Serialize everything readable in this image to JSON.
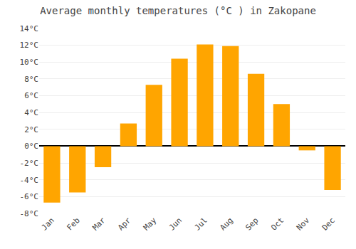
{
  "chart_data": {
    "type": "bar",
    "title": "Average monthly temperatures (°C ) in Zakopane",
    "categories": [
      "Jan",
      "Feb",
      "Mar",
      "Apr",
      "May",
      "Jun",
      "Jul",
      "Aug",
      "Sep",
      "Oct",
      "Nov",
      "Dec"
    ],
    "values": [
      -6.7,
      -5.5,
      -2.5,
      2.7,
      7.3,
      10.4,
      12.1,
      11.9,
      8.6,
      5.0,
      -0.5,
      -5.2
    ],
    "color": "#FFA500",
    "ylim": [
      -8,
      14
    ],
    "yticks": [
      {
        "value": -8,
        "label": "-8°C"
      },
      {
        "value": -6,
        "label": "-6°C"
      },
      {
        "value": -4,
        "label": "-4°C"
      },
      {
        "value": -2,
        "label": "-2°C"
      },
      {
        "value": 0,
        "label": "0°C"
      },
      {
        "value": 2,
        "label": "2°C"
      },
      {
        "value": 4,
        "label": "4°C"
      },
      {
        "value": 6,
        "label": "6°C"
      },
      {
        "value": 8,
        "label": "8°C"
      },
      {
        "value": 10,
        "label": "10°C"
      },
      {
        "value": 12,
        "label": "12°C"
      },
      {
        "value": 14,
        "label": "14°C"
      }
    ],
    "grid": true
  }
}
